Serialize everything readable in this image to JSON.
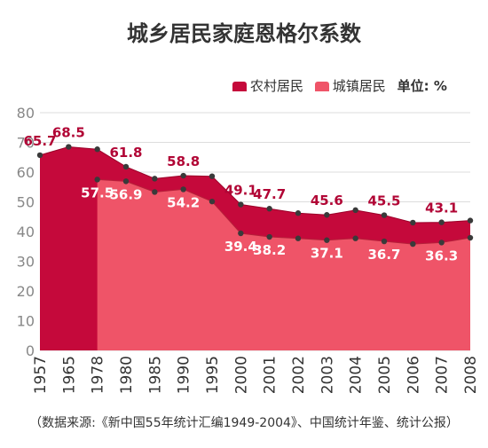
{
  "title": "城乡居民家庭恩格尔系数",
  "legend": {
    "rural": "农村居民",
    "urban": "城镇居民",
    "unit": "单位: %"
  },
  "source": "（数据来源:《新中国55年统计汇编1949-2004》、中国统计年鉴、统计公报）",
  "colors": {
    "rural": "#c5093b",
    "urban": "#ef5468",
    "grid": "#dddddd",
    "axis_text": "#888888",
    "rural_label": "#b10535",
    "urban_label": "#ffffff"
  },
  "chart_data": {
    "type": "area",
    "categories": [
      "1957",
      "1965",
      "1978",
      "1980",
      "1985",
      "1990",
      "1995",
      "2000",
      "2001",
      "2002",
      "2003",
      "2004",
      "2005",
      "2006",
      "2007",
      "2008"
    ],
    "ylim": [
      0,
      80
    ],
    "yticks": [
      "0",
      "10",
      "20",
      "30",
      "40",
      "50",
      "60",
      "70",
      "80"
    ],
    "series": [
      {
        "name": "农村居民",
        "values": [
          65.7,
          68.5,
          67.7,
          61.8,
          57.8,
          58.8,
          58.6,
          49.1,
          47.7,
          46.2,
          45.6,
          47.2,
          45.5,
          43.0,
          43.1,
          43.7
        ]
      },
      {
        "name": "城镇居民",
        "values": [
          null,
          null,
          57.5,
          56.9,
          53.3,
          54.2,
          50.1,
          39.4,
          38.2,
          37.7,
          37.1,
          37.7,
          36.7,
          35.8,
          36.3,
          37.9
        ]
      }
    ],
    "data_labels": {
      "rural": [
        {
          "index": 0,
          "text": "65.7"
        },
        {
          "index": 1,
          "text": "68.5"
        },
        {
          "index": 3,
          "text": "61.8"
        },
        {
          "index": 5,
          "text": "58.8"
        },
        {
          "index": 7,
          "text": "49.1"
        },
        {
          "index": 8,
          "text": "47.7"
        },
        {
          "index": 10,
          "text": "45.6"
        },
        {
          "index": 12,
          "text": "45.5"
        },
        {
          "index": 14,
          "text": "43.1"
        }
      ],
      "urban": [
        {
          "index": 2,
          "text": "57.5"
        },
        {
          "index": 3,
          "text": "56.9"
        },
        {
          "index": 5,
          "text": "54.2"
        },
        {
          "index": 7,
          "text": "39.4"
        },
        {
          "index": 8,
          "text": "38.2"
        },
        {
          "index": 10,
          "text": "37.1"
        },
        {
          "index": 12,
          "text": "36.7"
        },
        {
          "index": 14,
          "text": "36.3"
        }
      ]
    },
    "grid": true,
    "legend_position": "top-right"
  }
}
